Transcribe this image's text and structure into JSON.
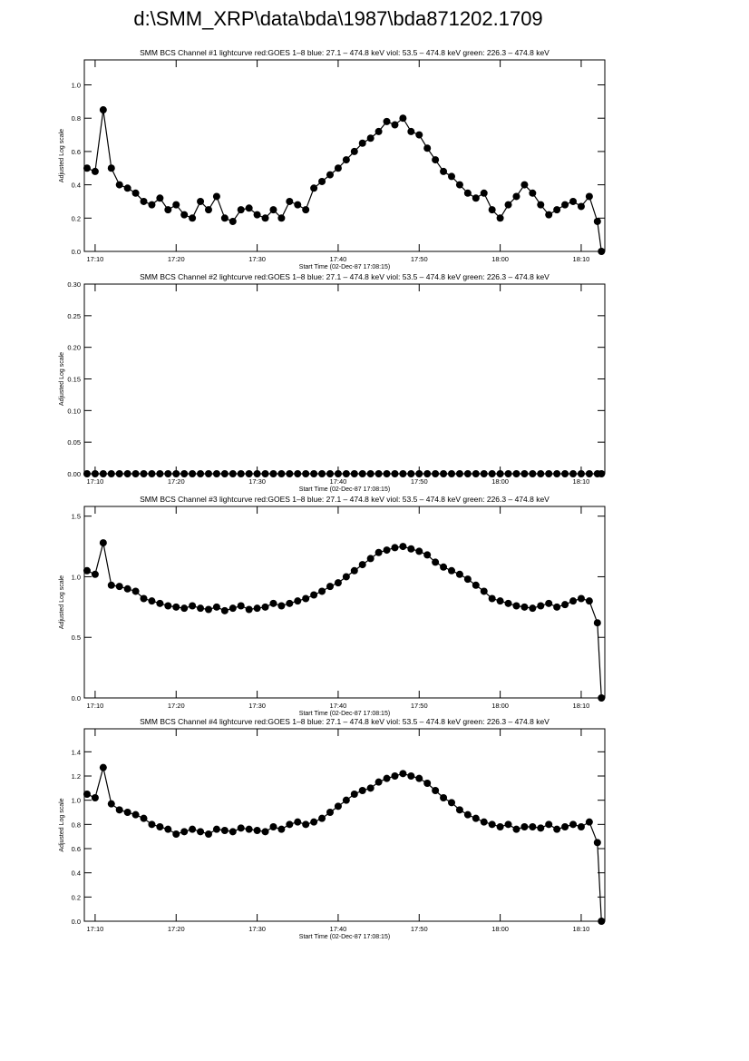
{
  "title": "d:\\SMM_XRP\\data\\bda\\1987\\bda871202.1709",
  "chart_data": [
    {
      "type": "line",
      "title": "SMM BCS Channel #1 lightcurve  red:GOES 1–8  blue: 27.1 – 474.8 keV  viol: 53.5 – 474.8 keV  green: 226.3 – 474.8 keV",
      "xlabel": "Start Time (02-Dec-87 17:08:15)",
      "ylabel": "Adjusted Log scale",
      "color": "#000000",
      "x": [
        "17:09",
        "17:10",
        "17:11",
        "17:12",
        "17:13",
        "17:14",
        "17:15",
        "17:16",
        "17:17",
        "17:18",
        "17:19",
        "17:20",
        "17:21",
        "17:22",
        "17:23",
        "17:24",
        "17:25",
        "17:26",
        "17:27",
        "17:28",
        "17:29",
        "17:30",
        "17:31",
        "17:32",
        "17:33",
        "17:34",
        "17:35",
        "17:36",
        "17:37",
        "17:38",
        "17:39",
        "17:40",
        "17:41",
        "17:42",
        "17:43",
        "17:44",
        "17:45",
        "17:46",
        "17:47",
        "17:48",
        "17:49",
        "17:50",
        "17:51",
        "17:52",
        "17:53",
        "17:54",
        "17:55",
        "17:56",
        "17:57",
        "17:58",
        "17:59",
        "18:00",
        "18:01",
        "18:02",
        "18:03",
        "18:04",
        "18:05",
        "18:06",
        "18:07",
        "18:08",
        "18:09",
        "18:10",
        "18:11",
        "18:12",
        "18:12:30"
      ],
      "values": [
        0.5,
        0.48,
        0.85,
        0.5,
        0.4,
        0.38,
        0.35,
        0.3,
        0.28,
        0.32,
        0.25,
        0.28,
        0.22,
        0.2,
        0.3,
        0.25,
        0.33,
        0.2,
        0.18,
        0.25,
        0.26,
        0.22,
        0.2,
        0.25,
        0.2,
        0.3,
        0.28,
        0.25,
        0.38,
        0.42,
        0.46,
        0.5,
        0.55,
        0.6,
        0.65,
        0.68,
        0.72,
        0.78,
        0.76,
        0.8,
        0.72,
        0.7,
        0.62,
        0.55,
        0.48,
        0.45,
        0.4,
        0.35,
        0.32,
        0.35,
        0.25,
        0.2,
        0.28,
        0.33,
        0.4,
        0.35,
        0.28,
        0.22,
        0.25,
        0.28,
        0.3,
        0.27,
        0.33,
        0.18,
        0.0
      ],
      "xlim": [
        "17:08:40",
        "18:12:55"
      ],
      "xticks": [
        "17:10",
        "17:20",
        "17:30",
        "17:40",
        "17:50",
        "18:00",
        "18:10"
      ],
      "ylim": [
        0,
        1.15
      ],
      "yticks": [
        {
          "value": 0,
          "label": "0.0"
        },
        0.2,
        0.4,
        0.6,
        0.8,
        {
          "value": 1,
          "label": "1.0"
        }
      ]
    },
    {
      "type": "line",
      "title": "SMM BCS Channel #2 lightcurve  red:GOES 1–8  blue: 27.1 – 474.8 keV  viol: 53.5 – 474.8 keV  green: 226.3 – 474.8 keV",
      "xlabel": "Start Time (02-Dec-87 17:08:15)",
      "ylabel": "Adjusted Log scale",
      "color": "#000000",
      "x": [
        "17:09",
        "17:10",
        "17:11",
        "17:12",
        "17:13",
        "17:14",
        "17:15",
        "17:16",
        "17:17",
        "17:18",
        "17:19",
        "17:20",
        "17:21",
        "17:22",
        "17:23",
        "17:24",
        "17:25",
        "17:26",
        "17:27",
        "17:28",
        "17:29",
        "17:30",
        "17:31",
        "17:32",
        "17:33",
        "17:34",
        "17:35",
        "17:36",
        "17:37",
        "17:38",
        "17:39",
        "17:40",
        "17:41",
        "17:42",
        "17:43",
        "17:44",
        "17:45",
        "17:46",
        "17:47",
        "17:48",
        "17:49",
        "17:50",
        "17:51",
        "17:52",
        "17:53",
        "17:54",
        "17:55",
        "17:56",
        "17:57",
        "17:58",
        "17:59",
        "18:00",
        "18:01",
        "18:02",
        "18:03",
        "18:04",
        "18:05",
        "18:06",
        "18:07",
        "18:08",
        "18:09",
        "18:10",
        "18:11",
        "18:12",
        "18:12:30"
      ],
      "values": [
        0,
        0,
        0,
        0,
        0,
        0,
        0,
        0,
        0,
        0,
        0,
        0,
        0,
        0,
        0,
        0,
        0,
        0,
        0,
        0,
        0,
        0,
        0,
        0,
        0,
        0,
        0,
        0,
        0,
        0,
        0,
        0,
        0,
        0,
        0,
        0,
        0,
        0,
        0,
        0,
        0,
        0,
        0,
        0,
        0,
        0,
        0,
        0,
        0,
        0,
        0,
        0,
        0,
        0,
        0,
        0,
        0,
        0,
        0,
        0,
        0,
        0,
        0,
        0,
        0
      ],
      "xlim": [
        "17:08:40",
        "18:12:55"
      ],
      "xticks": [
        "17:10",
        "17:20",
        "17:30",
        "17:40",
        "17:50",
        "18:00",
        "18:10"
      ],
      "ylim": [
        0,
        0.3
      ],
      "yticks": [
        {
          "value": 0,
          "label": "0.00"
        },
        {
          "value": 0.05,
          "label": "0.05"
        },
        {
          "value": 0.1,
          "label": "0.10"
        },
        {
          "value": 0.15,
          "label": "0.15"
        },
        {
          "value": 0.2,
          "label": "0.20"
        },
        {
          "value": 0.25,
          "label": "0.25"
        },
        {
          "value": 0.3,
          "label": "0.30"
        }
      ]
    },
    {
      "type": "line",
      "title": "SMM BCS Channel #3 lightcurve  red:GOES 1–8  blue: 27.1 – 474.8 keV  viol: 53.5 – 474.8 keV  green: 226.3 – 474.8 keV",
      "xlabel": "Start Time (02-Dec-87 17:08:15)",
      "ylabel": "Adjusted Log scale",
      "color": "#000000",
      "x": [
        "17:09",
        "17:10",
        "17:11",
        "17:12",
        "17:13",
        "17:14",
        "17:15",
        "17:16",
        "17:17",
        "17:18",
        "17:19",
        "17:20",
        "17:21",
        "17:22",
        "17:23",
        "17:24",
        "17:25",
        "17:26",
        "17:27",
        "17:28",
        "17:29",
        "17:30",
        "17:31",
        "17:32",
        "17:33",
        "17:34",
        "17:35",
        "17:36",
        "17:37",
        "17:38",
        "17:39",
        "17:40",
        "17:41",
        "17:42",
        "17:43",
        "17:44",
        "17:45",
        "17:46",
        "17:47",
        "17:48",
        "17:49",
        "17:50",
        "17:51",
        "17:52",
        "17:53",
        "17:54",
        "17:55",
        "17:56",
        "17:57",
        "17:58",
        "17:59",
        "18:00",
        "18:01",
        "18:02",
        "18:03",
        "18:04",
        "18:05",
        "18:06",
        "18:07",
        "18:08",
        "18:09",
        "18:10",
        "18:11",
        "18:12",
        "18:12:30"
      ],
      "values": [
        1.05,
        1.02,
        1.28,
        0.93,
        0.92,
        0.9,
        0.88,
        0.82,
        0.8,
        0.78,
        0.76,
        0.75,
        0.74,
        0.76,
        0.74,
        0.73,
        0.75,
        0.72,
        0.74,
        0.76,
        0.73,
        0.74,
        0.75,
        0.78,
        0.76,
        0.78,
        0.8,
        0.82,
        0.85,
        0.88,
        0.92,
        0.95,
        1.0,
        1.05,
        1.1,
        1.15,
        1.2,
        1.22,
        1.24,
        1.25,
        1.23,
        1.21,
        1.18,
        1.12,
        1.08,
        1.05,
        1.02,
        0.98,
        0.93,
        0.88,
        0.82,
        0.8,
        0.78,
        0.76,
        0.75,
        0.74,
        0.76,
        0.78,
        0.75,
        0.77,
        0.8,
        0.82,
        0.8,
        0.62,
        0.0
      ],
      "xlim": [
        "17:08:40",
        "18:12:55"
      ],
      "xticks": [
        "17:10",
        "17:20",
        "17:30",
        "17:40",
        "17:50",
        "18:00",
        "18:10"
      ],
      "ylim": [
        0,
        1.58
      ],
      "yticks": [
        {
          "value": 0,
          "label": "0.0"
        },
        0.5,
        {
          "value": 1,
          "label": "1.0"
        },
        1.5
      ]
    },
    {
      "type": "line",
      "title": "SMM BCS Channel #4 lightcurve  red:GOES 1–8  blue: 27.1 – 474.8 keV  viol: 53.5 – 474.8 keV  green: 226.3 – 474.8 keV",
      "xlabel": "Start Time (02-Dec-87 17:08:15)",
      "ylabel": "Adjusted Log scale",
      "color": "#000000",
      "x": [
        "17:09",
        "17:10",
        "17:11",
        "17:12",
        "17:13",
        "17:14",
        "17:15",
        "17:16",
        "17:17",
        "17:18",
        "17:19",
        "17:20",
        "17:21",
        "17:22",
        "17:23",
        "17:24",
        "17:25",
        "17:26",
        "17:27",
        "17:28",
        "17:29",
        "17:30",
        "17:31",
        "17:32",
        "17:33",
        "17:34",
        "17:35",
        "17:36",
        "17:37",
        "17:38",
        "17:39",
        "17:40",
        "17:41",
        "17:42",
        "17:43",
        "17:44",
        "17:45",
        "17:46",
        "17:47",
        "17:48",
        "17:49",
        "17:50",
        "17:51",
        "17:52",
        "17:53",
        "17:54",
        "17:55",
        "17:56",
        "17:57",
        "17:58",
        "17:59",
        "18:00",
        "18:01",
        "18:02",
        "18:03",
        "18:04",
        "18:05",
        "18:06",
        "18:07",
        "18:08",
        "18:09",
        "18:10",
        "18:11",
        "18:12",
        "18:12:30"
      ],
      "values": [
        1.05,
        1.02,
        1.27,
        0.97,
        0.92,
        0.9,
        0.88,
        0.85,
        0.8,
        0.78,
        0.76,
        0.72,
        0.74,
        0.76,
        0.74,
        0.72,
        0.76,
        0.75,
        0.74,
        0.77,
        0.76,
        0.75,
        0.74,
        0.78,
        0.76,
        0.8,
        0.82,
        0.8,
        0.82,
        0.85,
        0.9,
        0.95,
        1.0,
        1.05,
        1.08,
        1.1,
        1.15,
        1.18,
        1.2,
        1.22,
        1.2,
        1.18,
        1.14,
        1.08,
        1.02,
        0.98,
        0.92,
        0.88,
        0.85,
        0.82,
        0.8,
        0.78,
        0.8,
        0.76,
        0.78,
        0.78,
        0.77,
        0.8,
        0.76,
        0.78,
        0.8,
        0.78,
        0.82,
        0.65,
        0.0
      ],
      "xlim": [
        "17:08:40",
        "18:12:55"
      ],
      "xticks": [
        "17:10",
        "17:20",
        "17:30",
        "17:40",
        "17:50",
        "18:00",
        "18:10"
      ],
      "ylim": [
        0,
        1.59
      ],
      "yticks": [
        {
          "value": 0,
          "label": "0.0"
        },
        0.2,
        0.4,
        0.6,
        0.8,
        {
          "value": 1,
          "label": "1.0"
        },
        1.2,
        1.4
      ]
    }
  ]
}
